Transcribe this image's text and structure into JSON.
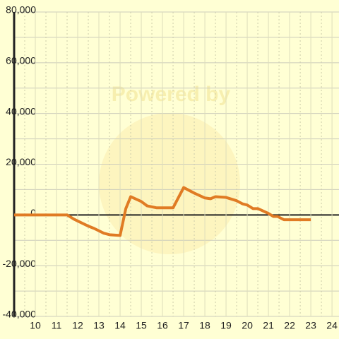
{
  "chart_data": {
    "type": "line",
    "watermark": "Powered by",
    "x": [
      9,
      11.5,
      11.83,
      12.5,
      12.77,
      13.23,
      13.5,
      14,
      14.27,
      14.5,
      15,
      15.27,
      15.73,
      16.5,
      17,
      17.5,
      18,
      18.27,
      18.5,
      19,
      19.5,
      19.77,
      20,
      20.27,
      20.5,
      21,
      21.23,
      21.43,
      21.73,
      23
    ],
    "series": [
      {
        "color": "#e07b24",
        "values": [
          0,
          0,
          -1700,
          -4400,
          -5300,
          -7200,
          -7800,
          -8100,
          2500,
          7200,
          5300,
          3600,
          2800,
          2800,
          10800,
          8600,
          6700,
          6400,
          7200,
          6900,
          5600,
          4400,
          3900,
          2500,
          2500,
          600,
          -600,
          -600,
          -1900,
          -1900
        ]
      }
    ],
    "xlim": [
      9,
      24.33
    ],
    "ylim": [
      -40000,
      80000
    ],
    "xticks": [
      10,
      11,
      12,
      13,
      14,
      15,
      16,
      17,
      18,
      19,
      20,
      21,
      22,
      23,
      24
    ],
    "xminor": [
      9.5,
      10.5,
      11.5,
      12.5,
      13.5,
      14.5,
      15.5,
      16.5,
      17.5,
      18.5,
      19.5,
      20.5,
      21.5,
      22.5,
      23.5
    ],
    "yticks": [
      {
        "value": -40000,
        "label": "-40,000"
      },
      {
        "value": -20000,
        "label": "-20,000"
      },
      0,
      {
        "value": 20000,
        "label": "20,000"
      },
      {
        "value": 40000,
        "label": "40,000"
      },
      {
        "value": 60000,
        "label": "60,000"
      },
      {
        "value": 80000,
        "label": "80,000"
      }
    ],
    "yminor": [
      -30000,
      -10000,
      10000,
      30000,
      50000,
      70000
    ],
    "grid": true
  }
}
